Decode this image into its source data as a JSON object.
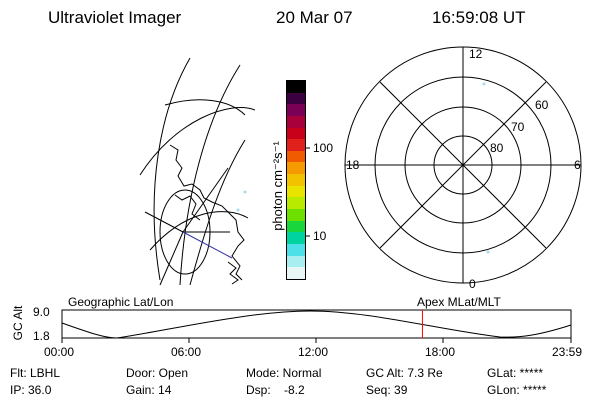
{
  "header": {
    "title": "Ultraviolet Imager",
    "date": "20 Mar 07",
    "time": "16:59:08 UT"
  },
  "colorbar": {
    "unit": "photon cm⁻²s⁻¹",
    "tick_labels": [
      "100",
      "10"
    ],
    "colors": [
      "#000000",
      "#3b0040",
      "#7a0055",
      "#a8003a",
      "#c8001a",
      "#e0201a",
      "#f05a00",
      "#f59a00",
      "#f2c200",
      "#e8e400",
      "#b8ea00",
      "#6ee000",
      "#18d63c",
      "#00d2a0",
      "#4de0e8",
      "#a8eef0",
      "#e8f6f6"
    ]
  },
  "polar_plot": {
    "mlt_labels": {
      "top": "12",
      "left": "18",
      "right": "6",
      "bottom": "0"
    },
    "lat_labels": [
      "60",
      "70",
      "80"
    ]
  },
  "timeline": {
    "left_label": "Geographic Lat/Lon",
    "right_label": "Apex MLat/MLT",
    "axis_title": "GC Alt",
    "y_ticks": [
      "9.0",
      "1.8"
    ],
    "x_ticks": [
      "00:00",
      "06:00",
      "12:00",
      "18:00",
      "23:59"
    ],
    "current_time_marker": "16:59",
    "marker_color": "#ff0000"
  },
  "info": {
    "filter": "Flt: LBHL",
    "ip": "IP: 36.0",
    "door": "Door: Open",
    "gain": "Gain: 14",
    "mode": "Mode: Normal",
    "dsp": "Dsp:    -8.2",
    "gc_alt": "GC Alt: 7.3 Re",
    "seq": "Seq: 39",
    "glat": "GLat: *****",
    "glon": "GLon: *****"
  }
}
